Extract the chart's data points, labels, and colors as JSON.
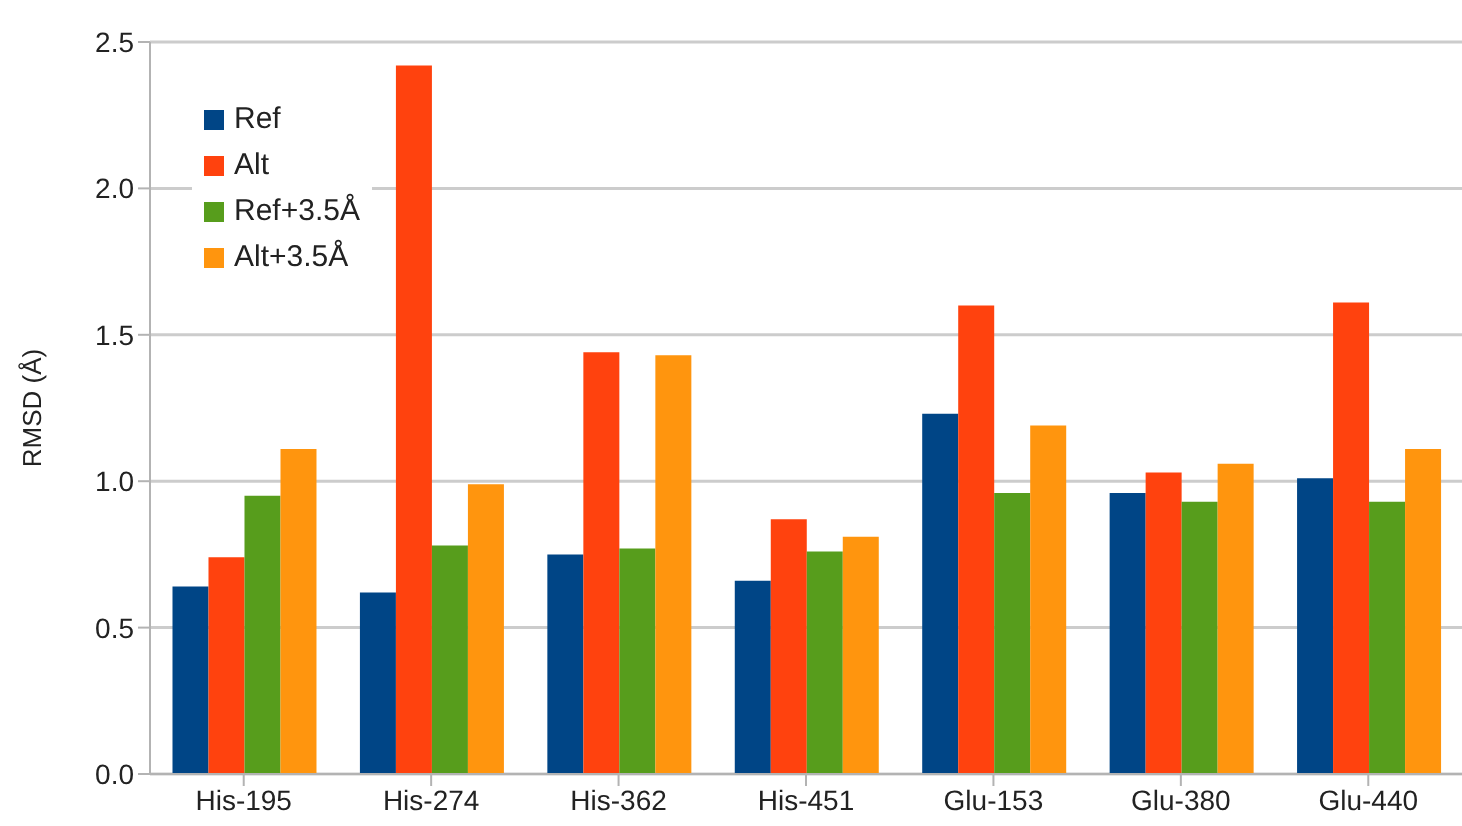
{
  "chart_data": {
    "type": "bar",
    "ylabel": "RMSD (Å)",
    "categories": [
      "His-195",
      "His-274",
      "His-362",
      "His-451",
      "Glu-153",
      "Glu-380",
      "Glu-440"
    ],
    "series": [
      {
        "name": "Ref",
        "color": "#004586",
        "values": [
          0.64,
          0.62,
          0.75,
          0.66,
          1.23,
          0.96,
          1.01
        ]
      },
      {
        "name": "Alt",
        "color": "#ff420e",
        "values": [
          0.74,
          2.42,
          1.44,
          0.87,
          1.6,
          1.03,
          1.61
        ]
      },
      {
        "name": "Ref+3.5Å",
        "color": "#579d1c",
        "values": [
          0.95,
          0.78,
          0.77,
          0.76,
          0.96,
          0.93,
          0.93
        ]
      },
      {
        "name": "Alt+3.5Å",
        "color": "#ff950e",
        "values": [
          1.11,
          0.99,
          1.43,
          0.81,
          1.19,
          1.06,
          1.11
        ]
      }
    ],
    "ylim": [
      0,
      2.5
    ],
    "yticks": [
      {
        "value": 0,
        "label": "0.0"
      },
      {
        "value": 0.5,
        "label": "0.5"
      },
      {
        "value": 1,
        "label": "1.0"
      },
      {
        "value": 1.5,
        "label": "1.5"
      },
      {
        "value": 2,
        "label": "2.0"
      },
      {
        "value": 2.5,
        "label": "2.5"
      }
    ],
    "grid": "y",
    "legend": "top left"
  }
}
